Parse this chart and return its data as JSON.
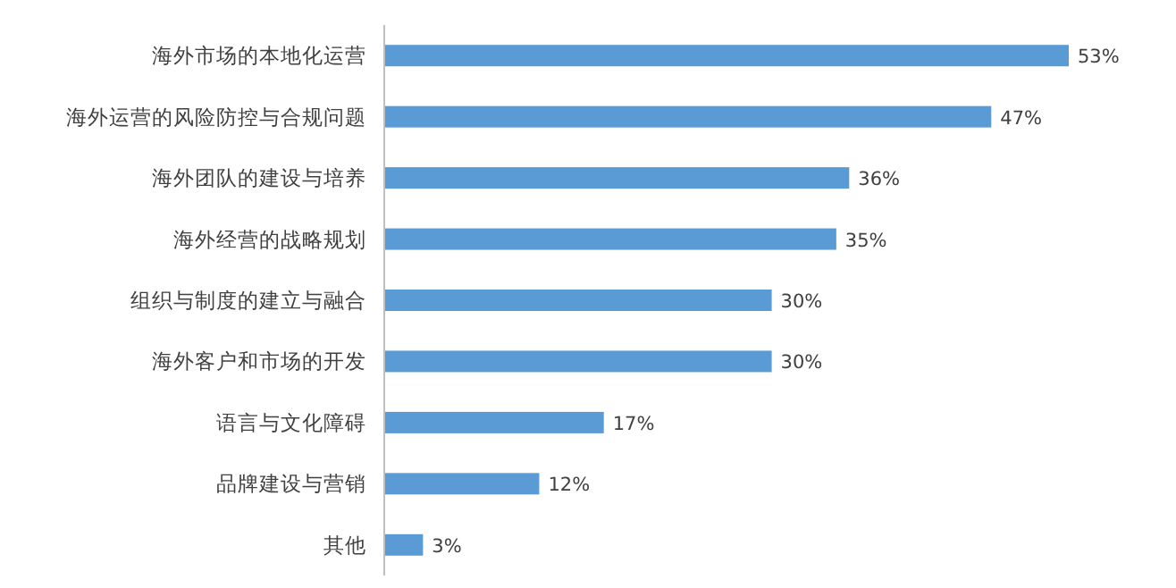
{
  "chart_data": {
    "type": "bar",
    "orientation": "horizontal",
    "color": "#5b9bd5",
    "categories": [
      "海外市场的本地化运营",
      "海外运营的风险防控与合规问题",
      "海外团队的建设与培养",
      "海外经营的战略规划",
      "组织与制度的建立与融合",
      "海外客户和市场的开发",
      "语言与文化障碍",
      "品牌建设与营销",
      "其他"
    ],
    "values": [
      53,
      47,
      36,
      35,
      30,
      30,
      17,
      12,
      3
    ],
    "value_labels": [
      "53%",
      "47%",
      "36%",
      "35%",
      "30%",
      "30%",
      "17%",
      "12%",
      "3%"
    ]
  }
}
